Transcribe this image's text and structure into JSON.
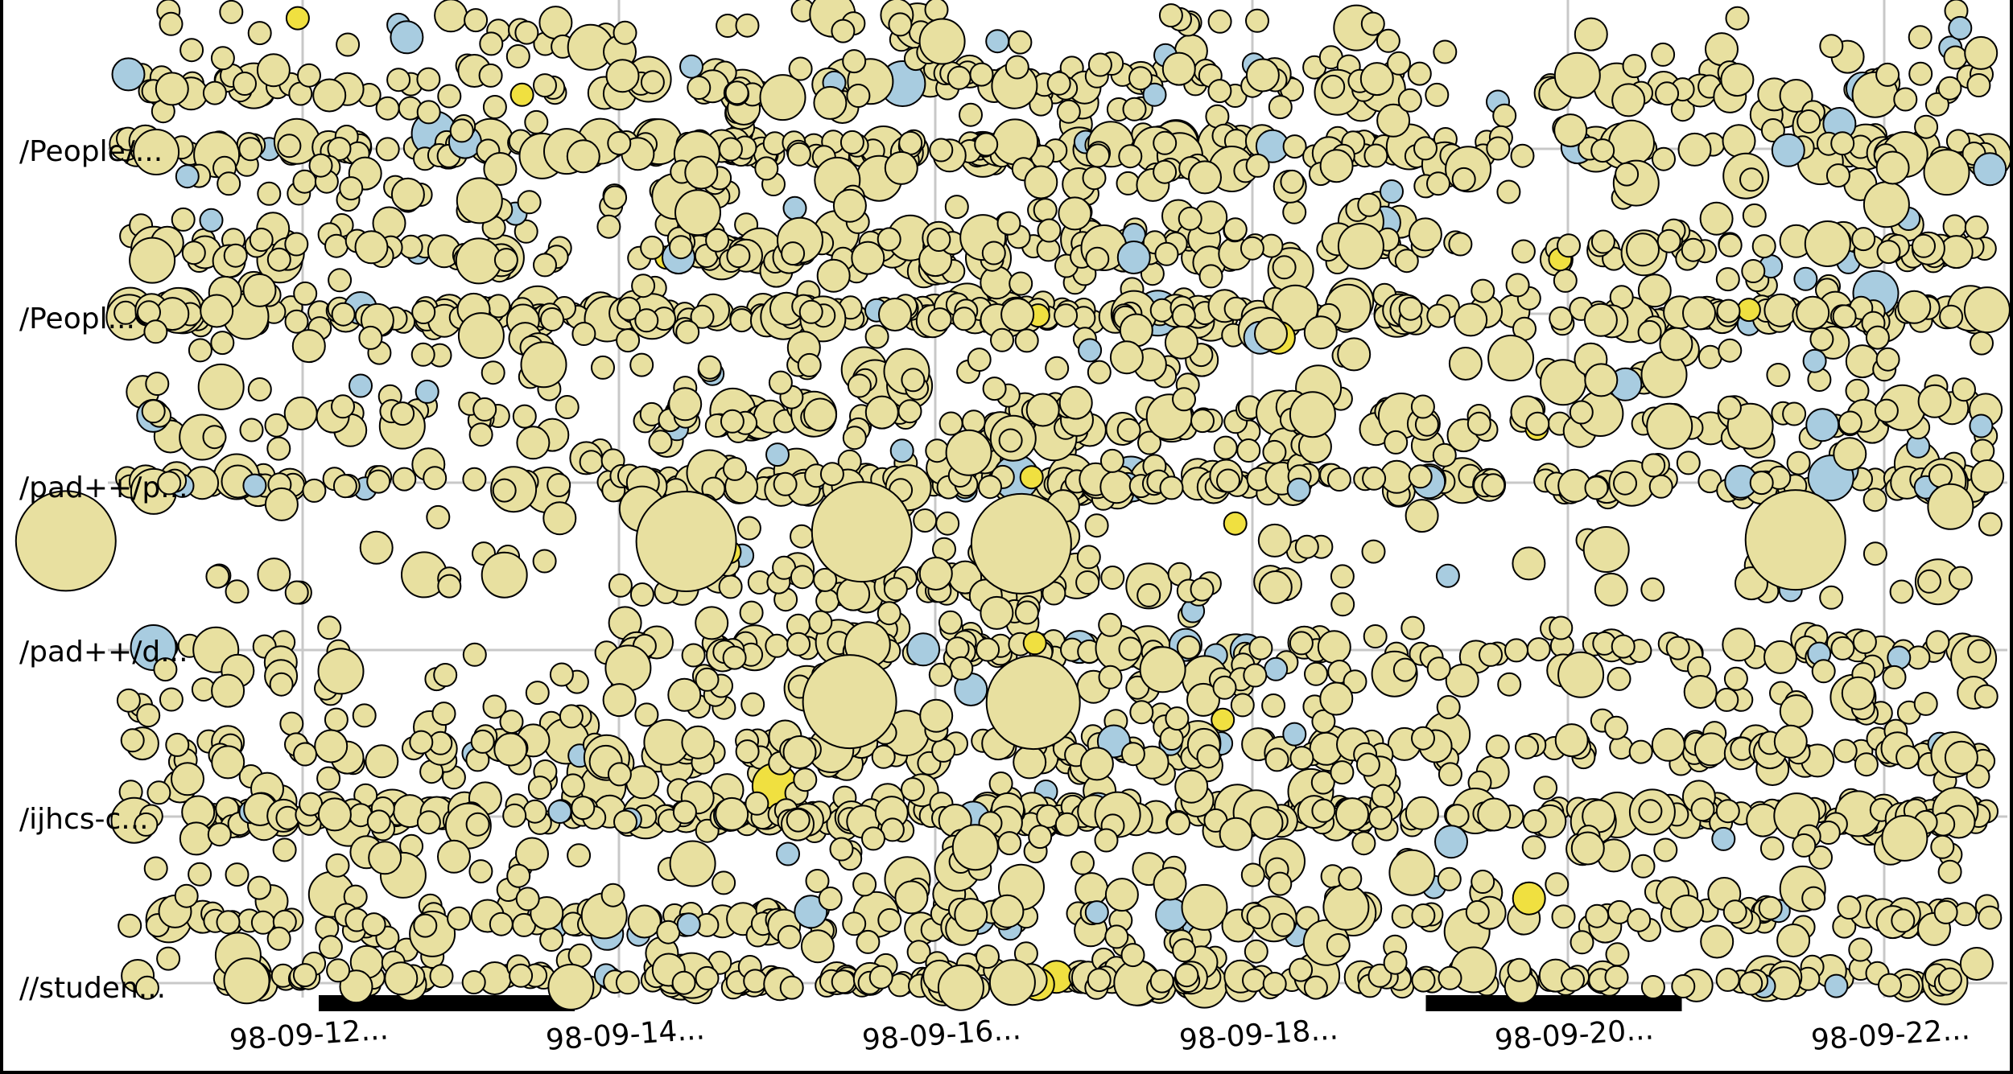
{
  "chart_data": {
    "type": "scatter",
    "title": "",
    "xlabel": "",
    "ylabel": "",
    "x_tick_labels": [
      "98-09-12...",
      "98-09-14...",
      "98-09-16...",
      "98-09-18...",
      "98-09-20...",
      "98-09-22..."
    ],
    "x_ticks": [
      "1998-09-12",
      "1998-09-14",
      "1998-09-16",
      "1998-09-18",
      "1998-09-20",
      "1998-09-22"
    ],
    "xlim": [
      "1998-09-10",
      "1998-09-23"
    ],
    "y_tick_labels": [
      "/People/...",
      "/Peopl...",
      "/pad++/p...",
      "/pad++/d...",
      "/ijhcs-c...",
      "//studen..."
    ],
    "grid": true,
    "weekend_bars": [
      {
        "start": "1998-09-12",
        "end": "1998-09-14"
      },
      {
        "start": "1998-09-19",
        "end": "1998-09-21"
      }
    ],
    "marker_colors": {
      "default": "#e8e0a0",
      "light_blue": "#a8cce0",
      "highlight": "#f0e040",
      "outline": "#000000"
    },
    "bands": [
      {
        "label": "/People/...",
        "dates": [
          "1998-09-10",
          "1998-09-11",
          "1998-09-12",
          "1998-09-13",
          "1998-09-14",
          "1998-09-15",
          "1998-09-16",
          "1998-09-17",
          "1998-09-18",
          "1998-09-19",
          "1998-09-20",
          "1998-09-21",
          "1998-09-22"
        ],
        "relative_activity": [
          0.6,
          0.7,
          0.5,
          0.6,
          0.8,
          0.7,
          0.9,
          0.8,
          0.7,
          0.3,
          0.4,
          0.6,
          0.7
        ]
      },
      {
        "label": "/Peopl...",
        "dates": [
          "1998-09-10",
          "1998-09-11",
          "1998-09-12",
          "1998-09-13",
          "1998-09-14",
          "1998-09-15",
          "1998-09-16",
          "1998-09-17",
          "1998-09-18",
          "1998-09-19",
          "1998-09-20",
          "1998-09-21",
          "1998-09-22"
        ],
        "relative_activity": [
          0.8,
          0.9,
          0.7,
          0.8,
          0.9,
          0.9,
          1.0,
          1.0,
          0.8,
          0.4,
          0.6,
          0.8,
          0.9
        ]
      },
      {
        "label": "/pad++/p...",
        "dates": [
          "1998-09-10",
          "1998-09-11",
          "1998-09-12",
          "1998-09-13",
          "1998-09-14",
          "1998-09-15",
          "1998-09-16",
          "1998-09-17",
          "1998-09-18",
          "1998-09-19",
          "1998-09-20",
          "1998-09-21",
          "1998-09-22"
        ],
        "relative_activity": [
          0.7,
          0.6,
          0.4,
          0.5,
          0.9,
          0.8,
          1.0,
          0.9,
          0.7,
          0.5,
          0.5,
          0.7,
          0.8
        ]
      },
      {
        "label": "/pad++/d...",
        "dates": [
          "1998-09-10",
          "1998-09-11",
          "1998-09-12",
          "1998-09-13",
          "1998-09-14",
          "1998-09-15",
          "1998-09-16",
          "1998-09-17",
          "1998-09-18",
          "1998-09-19",
          "1998-09-20",
          "1998-09-21",
          "1998-09-22"
        ],
        "relative_activity": [
          0.1,
          0.2,
          0.1,
          0.1,
          0.5,
          0.6,
          0.9,
          0.4,
          0.3,
          0.2,
          0.2,
          0.3,
          0.3
        ]
      },
      {
        "label": "/ijhcs-c...",
        "dates": [
          "1998-09-10",
          "1998-09-11",
          "1998-09-12",
          "1998-09-13",
          "1998-09-14",
          "1998-09-15",
          "1998-09-16",
          "1998-09-17",
          "1998-09-18",
          "1998-09-19",
          "1998-09-20",
          "1998-09-21",
          "1998-09-22"
        ],
        "relative_activity": [
          0.7,
          0.8,
          0.7,
          0.8,
          1.0,
          1.0,
          1.0,
          0.9,
          0.9,
          0.5,
          0.6,
          0.9,
          1.0
        ]
      },
      {
        "label": "//studen...",
        "dates": [
          "1998-09-10",
          "1998-09-11",
          "1998-09-12",
          "1998-09-13",
          "1998-09-14",
          "1998-09-15",
          "1998-09-16",
          "1998-09-17",
          "1998-09-18",
          "1998-09-19",
          "1998-09-20",
          "1998-09-21",
          "1998-09-22"
        ],
        "relative_activity": [
          0.6,
          0.7,
          0.6,
          0.7,
          0.8,
          0.8,
          0.9,
          0.8,
          0.7,
          0.5,
          0.5,
          0.7,
          0.7
        ]
      }
    ],
    "large_markers": [
      {
        "band": "/pad++/p...",
        "date": "1998-09-10",
        "size": "large"
      },
      {
        "band": "/pad++/p...",
        "date": "1998-09-14",
        "size": "large"
      },
      {
        "band": "/pad++/p...",
        "date": "1998-09-15",
        "size": "large"
      },
      {
        "band": "/pad++/p...",
        "date": "1998-09-16",
        "size": "large"
      },
      {
        "band": "/pad++/p...",
        "date": "1998-09-21",
        "size": "large"
      },
      {
        "band": "/pad++/d...",
        "date": "1998-09-15",
        "size": "large"
      },
      {
        "band": "/pad++/d...",
        "date": "1998-09-16",
        "size": "large"
      }
    ]
  }
}
